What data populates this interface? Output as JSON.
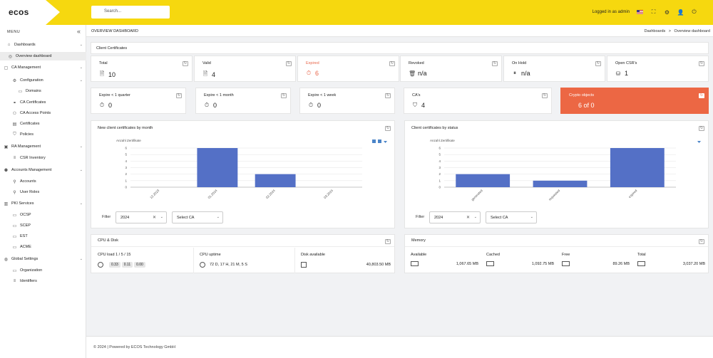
{
  "app": {
    "logo": "ecos",
    "search_placeholder": "Search...",
    "logged_in": "Logged in as admin"
  },
  "sidebar": {
    "menu_title": "MENU",
    "items": [
      {
        "label": "Dashboards",
        "icon": "home-icon"
      },
      {
        "label": "Overview dashboard",
        "icon": "circle-icon"
      },
      {
        "label": "CA Management",
        "icon": "ca-icon"
      },
      {
        "label": "Configuration",
        "icon": "gear-icon"
      },
      {
        "label": "Domains",
        "icon": "file-icon"
      },
      {
        "label": "CA Certificates",
        "icon": "link-icon"
      },
      {
        "label": "CA Access Points",
        "icon": "users-icon"
      },
      {
        "label": "Certificates",
        "icon": "certificate-icon"
      },
      {
        "label": "Policies",
        "icon": "shield-icon"
      },
      {
        "label": "RA Management",
        "icon": "ra-icon"
      },
      {
        "label": "CSR Inventory",
        "icon": "list-icon"
      },
      {
        "label": "Accounts Management",
        "icon": "accounts-icon"
      },
      {
        "label": "Accounts",
        "icon": "user-icon"
      },
      {
        "label": "User Roles",
        "icon": "user-roles-icon"
      },
      {
        "label": "PKI Services",
        "icon": "pki-icon"
      },
      {
        "label": "OCSP",
        "icon": "file-icon"
      },
      {
        "label": "SCEP",
        "icon": "file-icon"
      },
      {
        "label": "EST",
        "icon": "file-icon"
      },
      {
        "label": "ACME",
        "icon": "file-icon"
      },
      {
        "label": "Global Settings",
        "icon": "globe-icon"
      },
      {
        "label": "Organization",
        "icon": "file-icon"
      },
      {
        "label": "Identifiers",
        "icon": "list-icon"
      }
    ]
  },
  "header": {
    "page_title": "OVERVIEW DASHBOARD",
    "breadcrumb_1": "Dashboards",
    "breadcrumb_sep": ">",
    "breadcrumb_2": "Overview dashboard"
  },
  "client_certs": {
    "title": "Client Certificates",
    "row1": [
      {
        "label": "Total",
        "value": "10",
        "icon": "document-icon"
      },
      {
        "label": "Valid",
        "value": "4",
        "icon": "document-check-icon"
      },
      {
        "label": "Expired",
        "value": "6",
        "icon": "stopwatch-icon"
      },
      {
        "label": "Revoked",
        "value": "n/a",
        "icon": "trash-icon"
      },
      {
        "label": "On Hold",
        "value": "n/a",
        "icon": "pause-icon"
      },
      {
        "label": "Open CSR's",
        "value": "1",
        "icon": "inbox-icon"
      }
    ],
    "row2": [
      {
        "label": "Expire < 1 quarter",
        "value": "0",
        "icon": "stopwatch-icon"
      },
      {
        "label": "Expire < 1 month",
        "value": "0",
        "icon": "stopwatch-icon"
      },
      {
        "label": "Expire < 1 week",
        "value": "0",
        "icon": "stopwatch-icon"
      },
      {
        "label": "CA's",
        "value": "4",
        "icon": "shield-icon"
      },
      {
        "label": "Crypto objects",
        "value": "6 of 0",
        "icon": "code-icon"
      }
    ]
  },
  "chart_month": {
    "title": "New client certificates by month",
    "filter_label": "Filter",
    "year": "2024",
    "select_ca": "Select CA"
  },
  "chart_status": {
    "title": "Client certificates by status",
    "filter_label": "Filter",
    "year": "2024",
    "select_ca": "Select CA"
  },
  "chart_data": [
    {
      "type": "bar",
      "title": "New client certificates by month",
      "ylabel": "Anzahl Zertifikate",
      "categories": [
        "12.2023",
        "01.2024",
        "02.2024",
        "03.2024"
      ],
      "values": [
        0,
        6,
        2,
        0
      ],
      "ylim": [
        0,
        6
      ],
      "yticks": [
        0,
        1,
        2,
        3,
        4,
        5,
        6
      ],
      "color": "#5470c6"
    },
    {
      "type": "bar",
      "title": "Client certificates by status",
      "ylabel": "Anzahl Zertifikate",
      "categories": [
        "generated",
        "requested",
        "expired"
      ],
      "values": [
        2,
        1,
        6
      ],
      "ylim": [
        0,
        6
      ],
      "yticks": [
        0,
        1,
        2,
        3,
        4,
        5,
        6
      ],
      "color": "#5470c6"
    }
  ],
  "cpu": {
    "title": "CPU & Disk",
    "load_label": "CPU load 1 / 5 / 15",
    "load1": "0.33",
    "load5": "0.11",
    "load15": "0.00",
    "uptime_label": "CPU uptime",
    "uptime": "72 D, 17 H, 21 M, 5 S",
    "disk_label": "Disk available",
    "disk": "40,803.50 MB"
  },
  "memory": {
    "title": "Memory",
    "cols": [
      {
        "label": "Available",
        "value": "1,067.65 MB"
      },
      {
        "label": "Cached",
        "value": "1,092.75 MB"
      },
      {
        "label": "Free",
        "value": "89.26 MB"
      },
      {
        "label": "Total",
        "value": "3,037.20 MB"
      }
    ]
  },
  "footer": {
    "text": "© 2024 | Powered by ECOS Technology GmbH"
  },
  "colors": {
    "topbar": "#f6d80f",
    "accent_red": "#ec6744",
    "bar": "#5470c6"
  }
}
